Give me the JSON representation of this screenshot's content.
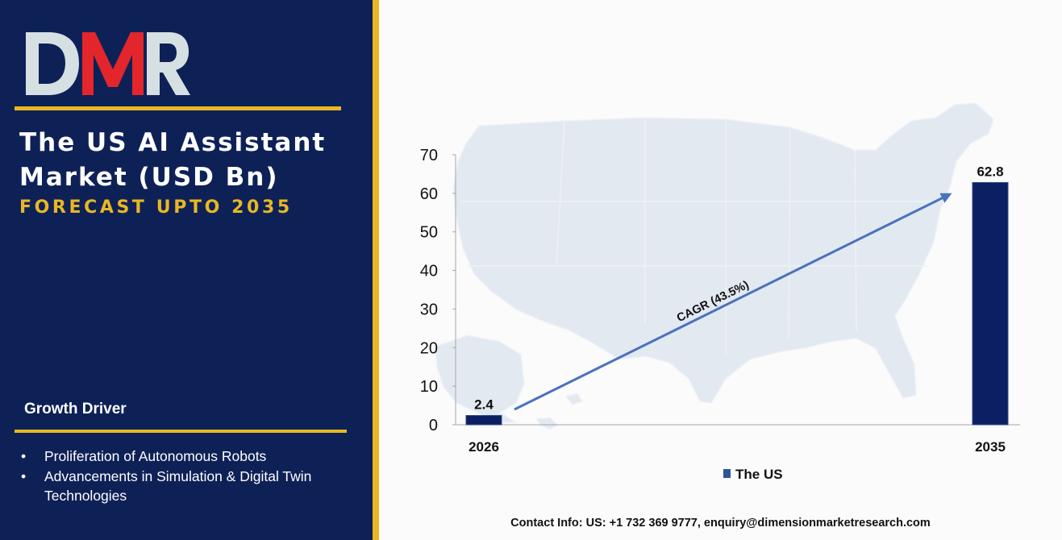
{
  "brand": {
    "logo_text": "DMR",
    "colors": {
      "navy": "#0e2157",
      "gold": "#e9b722",
      "red": "#e3262b",
      "grey": "#d6e0e2"
    }
  },
  "panel": {
    "title": "The US AI Assistant Market (USD Bn)",
    "subtitle": "FORECAST UPTO 2035",
    "driver_heading": "Growth Driver",
    "drivers": [
      "Proliferation of Autonomous Robots",
      "Advancements in Simulation & Digital Twin Technologies"
    ]
  },
  "chart_data": {
    "type": "bar",
    "categories": [
      "2026",
      "2035"
    ],
    "series": [
      {
        "name": "The US",
        "values": [
          2.4,
          62.8
        ],
        "color": "#0d1f63"
      }
    ],
    "ylim": [
      0,
      70
    ],
    "yticks": [
      0,
      10,
      20,
      30,
      40,
      50,
      60,
      70
    ],
    "data_labels": [
      "2.4",
      "62.8"
    ],
    "annotation": "CAGR (43.5%)",
    "legend": {
      "placement": "bottom-center",
      "label": "The US"
    },
    "grid": false,
    "background": "US map watermark"
  },
  "footer": {
    "contact": "Contact Info: US: +1 732 369 9777, enquiry@dimensionmarketresearch.com"
  }
}
